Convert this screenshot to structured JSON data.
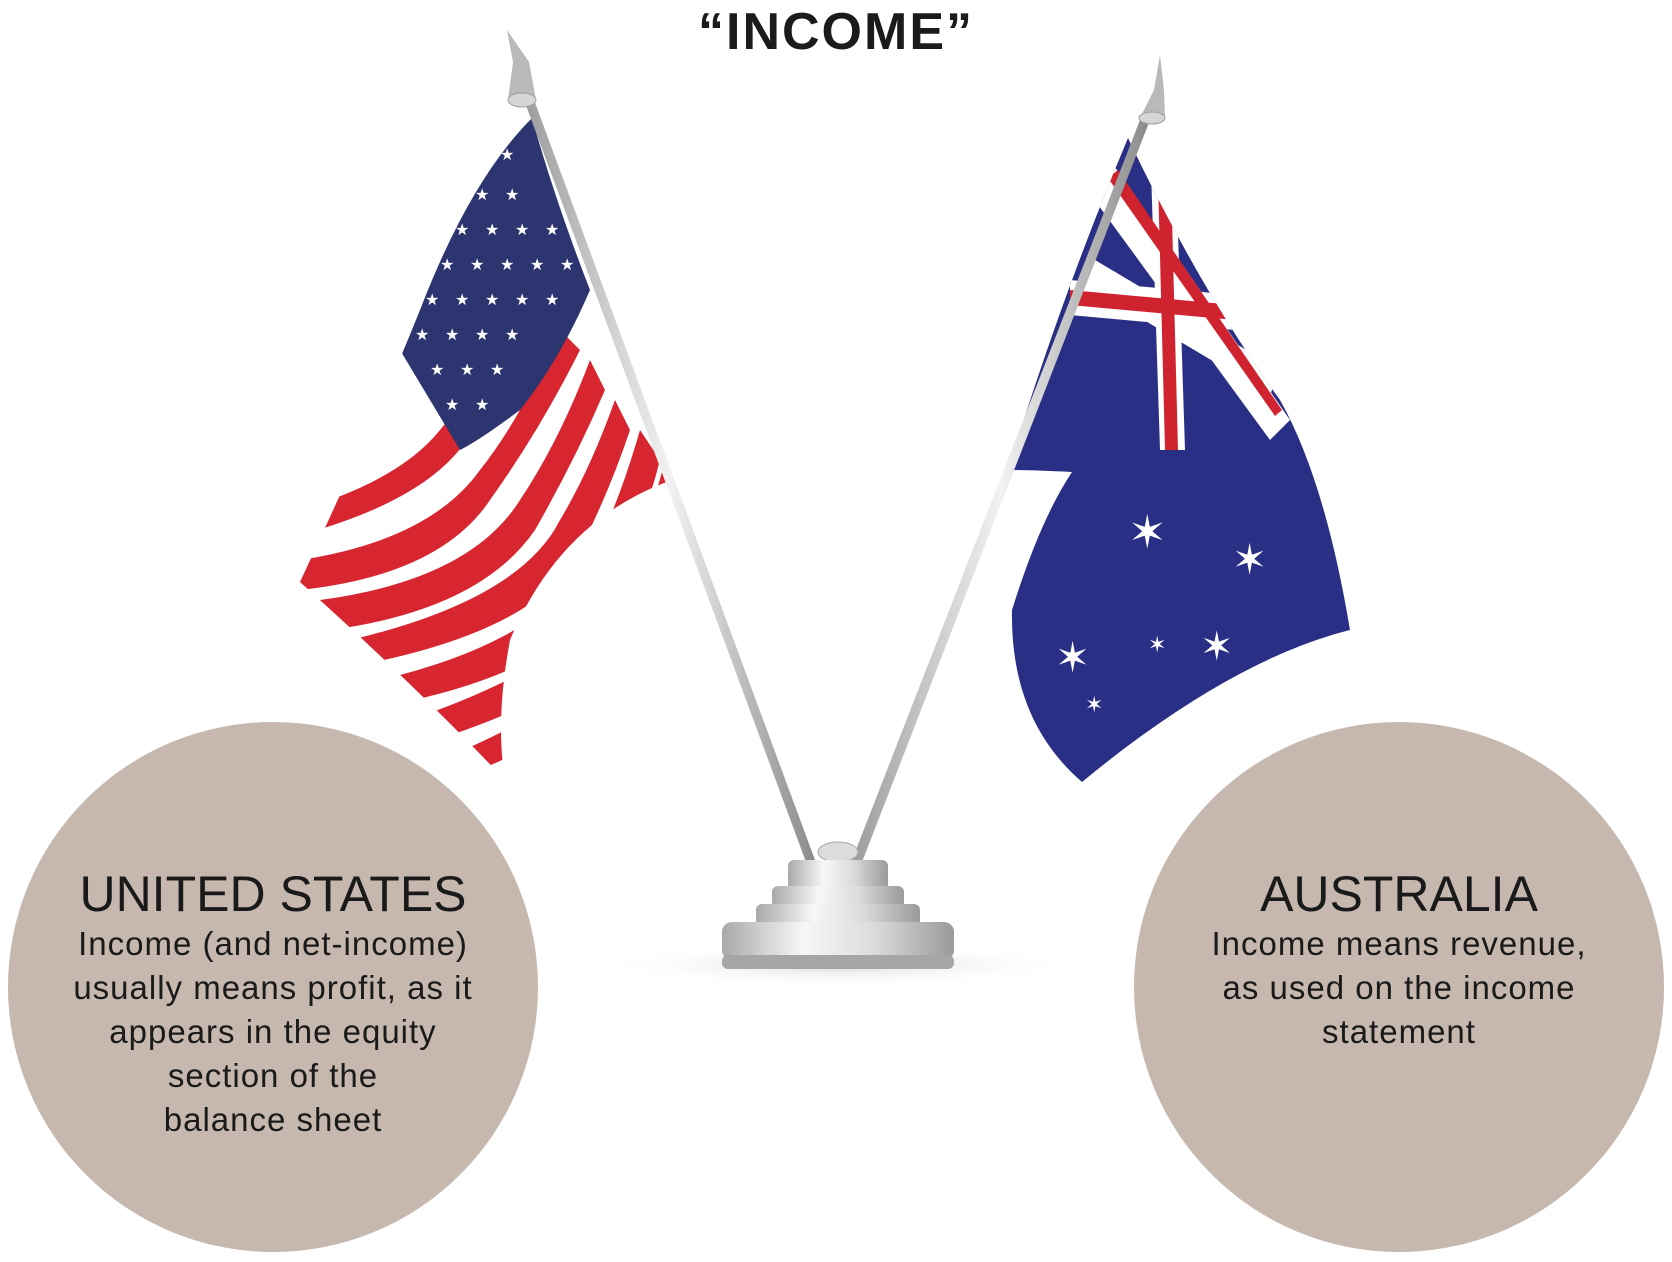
{
  "title": "“INCOME”",
  "flags": {
    "left": {
      "icon": "us-flag-icon",
      "colors": {
        "red": "#d7262f",
        "white": "#ffffff",
        "blue": "#2d3570"
      }
    },
    "right": {
      "icon": "au-flag-icon",
      "colors": {
        "red": "#cf2430",
        "white": "#ffffff",
        "blue": "#2a2f86"
      }
    },
    "stand_icon": "chrome-flag-stand-icon"
  },
  "circles": {
    "us": {
      "heading": "UNITED STATES",
      "body": "Income (and net-income)\nusually means profit, as it\nappears in the equity\nsection of the\nbalance sheet"
    },
    "au": {
      "heading": "AUSTRALIA",
      "body": "Income means revenue,\nas used on the income\nstatement"
    },
    "color": "#c6b8ae"
  }
}
